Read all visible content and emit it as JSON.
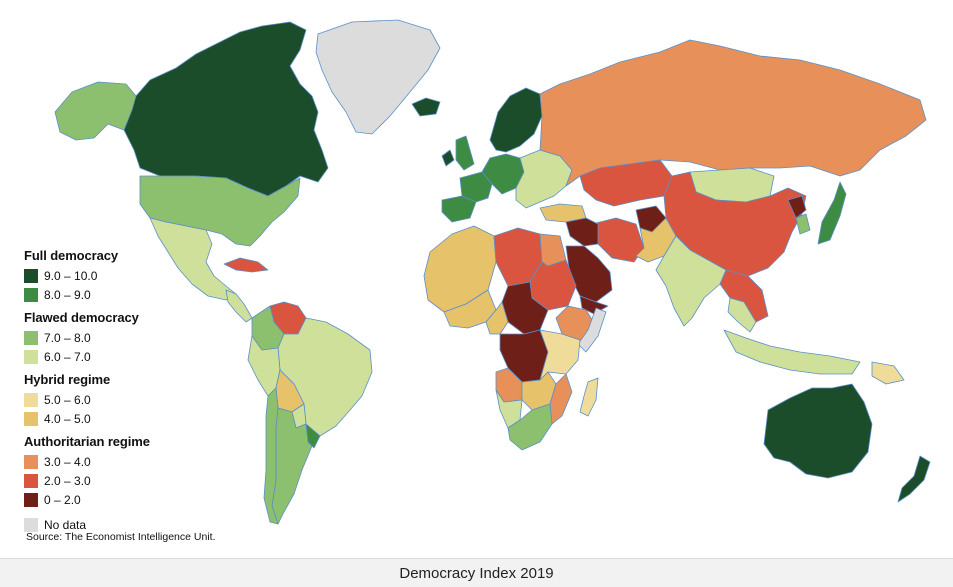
{
  "caption": "Democracy Index 2019",
  "source": "Source: The Economist Intelligence Unit.",
  "colors": {
    "full_high": "#1b4d2a",
    "full_low": "#3e8b44",
    "flawed_high": "#8cc06e",
    "flawed_low": "#cfe09a",
    "hybrid_high": "#f0dc9a",
    "hybrid_low": "#e6c26a",
    "auth_high": "#e8905a",
    "auth_mid": "#d9553f",
    "auth_low": "#6e1f18",
    "no_data": "#dcdcdc",
    "coast": "#5a8fc9"
  },
  "legend": {
    "groups": [
      {
        "title": "Full democracy",
        "items": [
          {
            "label": "9.0 – 10.0",
            "color": "#1b4d2a"
          },
          {
            "label": "8.0 – 9.0",
            "color": "#3e8b44"
          }
        ]
      },
      {
        "title": "Flawed democracy",
        "items": [
          {
            "label": "7.0 – 8.0",
            "color": "#8cc06e"
          },
          {
            "label": "6.0 – 7.0",
            "color": "#cfe09a"
          }
        ]
      },
      {
        "title": "Hybrid regime",
        "items": [
          {
            "label": "5.0 – 6.0",
            "color": "#f0dc9a"
          },
          {
            "label": "4.0 – 5.0",
            "color": "#e6c26a"
          }
        ]
      },
      {
        "title": "Authoritarian regime",
        "items": [
          {
            "label": "3.0 – 4.0",
            "color": "#e8905a"
          },
          {
            "label": "2.0 – 3.0",
            "color": "#d9553f"
          },
          {
            "label": "0 – 2.0",
            "color": "#6e1f18"
          }
        ]
      },
      {
        "title": "",
        "items": [
          {
            "label": "No data",
            "color": "#dcdcdc"
          }
        ]
      }
    ]
  },
  "regions": {
    "greenland": "no_data",
    "alaska": "flawed_high",
    "canada": "full_high",
    "usa": "flawed_high",
    "mexico": "flawed_low",
    "central_america": "flawed_low",
    "cuba": "auth_mid",
    "venezuela": "auth_mid",
    "colombia": "flawed_high",
    "brazil": "flawed_low",
    "peru": "flawed_low",
    "bolivia": "hybrid_low",
    "paraguay": "flawed_low",
    "argentina": "flawed_high",
    "chile": "flawed_high",
    "uruguay": "full_low",
    "iceland": "full_high",
    "uk": "full_low",
    "ireland": "full_high",
    "iberia": "full_low",
    "france": "full_low",
    "scandinavia": "full_high",
    "central_europe": "full_low",
    "eastern_europe": "flawed_low",
    "turkey": "hybrid_low",
    "russia": "auth_high",
    "kazakhstan": "auth_mid",
    "mongolia": "flawed_low",
    "china": "auth_mid",
    "north_korea": "auth_low",
    "south_korea": "flawed_high",
    "japan": "full_low",
    "india": "flawed_low",
    "pakistan": "hybrid_low",
    "iran": "auth_mid",
    "afghanistan": "auth_low",
    "saudi": "auth_low",
    "yemen": "auth_low",
    "syria_iraq": "auth_low",
    "se_asia": "flawed_low",
    "myanmar_vietnam": "auth_mid",
    "indonesia": "flawed_low",
    "png": "hybrid_high",
    "australia": "full_high",
    "new_zealand": "full_high",
    "west_sahara_africa": "hybrid_low",
    "algeria_libya": "auth_mid",
    "egypt": "auth_high",
    "sudan": "auth_mid",
    "chad_car": "auth_low",
    "west_coast_africa": "hybrid_low",
    "nigeria": "hybrid_low",
    "ethiopia": "auth_high",
    "somalia": "no_data",
    "drc": "auth_low",
    "east_africa": "hybrid_high",
    "angola": "auth_high",
    "zambia_zimbabwe": "hybrid_low",
    "namibia": "flawed_low",
    "south_africa": "flawed_high",
    "madagascar": "hybrid_high",
    "mozambique": "auth_high"
  }
}
